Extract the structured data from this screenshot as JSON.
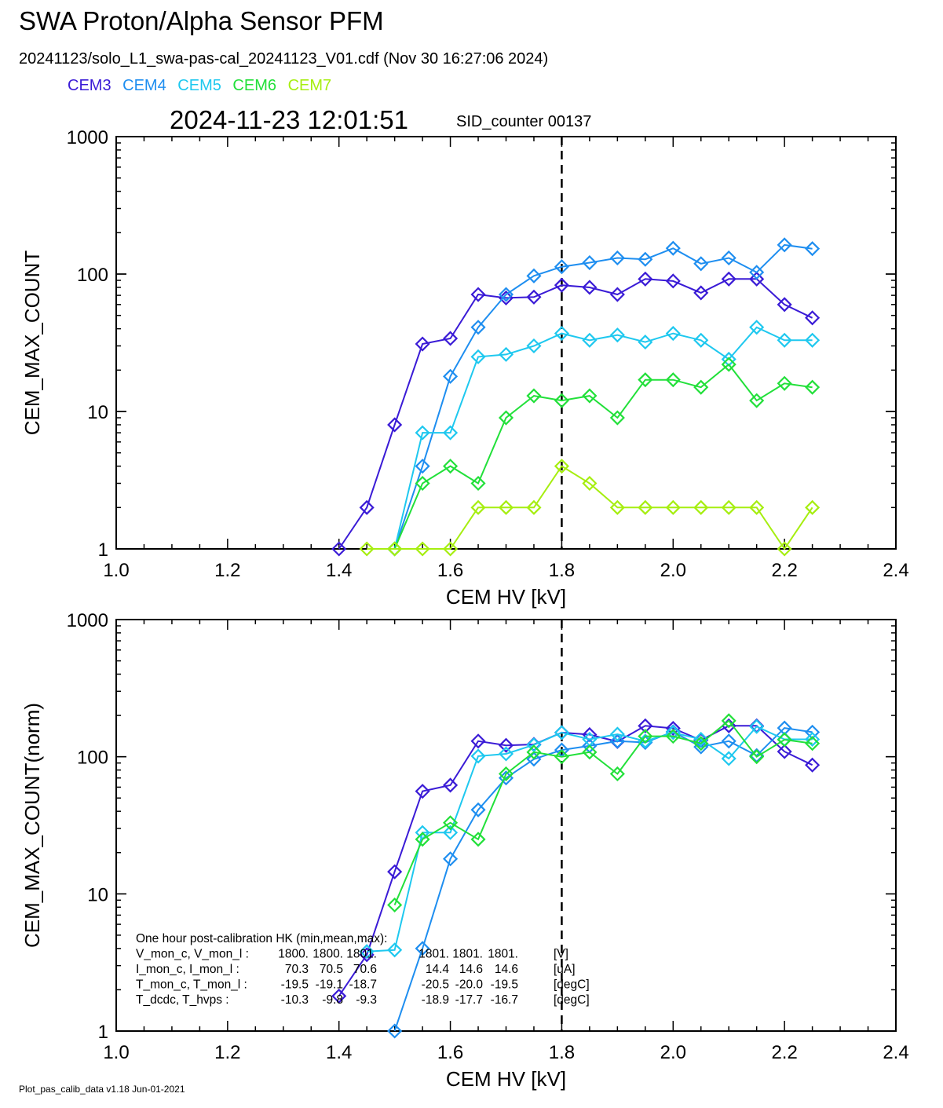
{
  "header": {
    "title": "SWA Proton/Alpha Sensor PFM",
    "subtitle": "20241123/solo_L1_swa-pas-cal_20241123_V01.cdf  (Nov 30 16:27:06 2024)",
    "timestamp": "2024-11-23 12:01:51",
    "sid_counter": "SID_counter 00137"
  },
  "legend": [
    {
      "name": "CEM3",
      "color": "#3a1bd6"
    },
    {
      "name": "CEM4",
      "color": "#1e8ef0"
    },
    {
      "name": "CEM5",
      "color": "#1ec8ef"
    },
    {
      "name": "CEM6",
      "color": "#22e03a"
    },
    {
      "name": "CEM7",
      "color": "#a6ee10"
    }
  ],
  "footer": "Plot_pas_calib_data v1.18 Jun-01-2021",
  "chart_data": [
    {
      "type": "line",
      "xlabel": "CEM HV [kV]",
      "ylabel": "CEM_MAX_COUNT",
      "xlim": [
        1.0,
        2.4
      ],
      "ylim": [
        1,
        1000
      ],
      "yscale": "log",
      "xticks": [
        "1.0",
        "1.2",
        "1.4",
        "1.6",
        "1.8",
        "2.0",
        "2.2",
        "2.4"
      ],
      "yticks": [
        "1",
        "10",
        "100",
        "1000"
      ],
      "vline_x": 1.8,
      "series": [
        {
          "name": "CEM3",
          "color": "#3a1bd6",
          "x": [
            1.4,
            1.45,
            1.5,
            1.55,
            1.6,
            1.65,
            1.7,
            1.75,
            1.8,
            1.85,
            1.9,
            1.95,
            2.0,
            2.05,
            2.1,
            2.15,
            2.2,
            2.25
          ],
          "y": [
            1,
            2,
            8,
            31,
            34,
            71,
            67,
            68,
            83,
            80,
            71,
            92,
            89,
            73,
            92,
            92,
            60,
            48
          ]
        },
        {
          "name": "CEM4",
          "color": "#1e8ef0",
          "x": [
            1.5,
            1.55,
            1.6,
            1.65,
            1.7,
            1.75,
            1.8,
            1.85,
            1.9,
            1.95,
            2.0,
            2.05,
            2.1,
            2.15,
            2.2,
            2.25
          ],
          "y": [
            1,
            4,
            18,
            41,
            71,
            97,
            113,
            121,
            131,
            128,
            154,
            119,
            131,
            103,
            163,
            153
          ]
        },
        {
          "name": "CEM5",
          "color": "#1ec8ef",
          "x": [
            1.5,
            1.55,
            1.6,
            1.65,
            1.7,
            1.75,
            1.8,
            1.85,
            1.9,
            1.95,
            2.0,
            2.05,
            2.1,
            2.15,
            2.2,
            2.25
          ],
          "y": [
            1,
            7,
            7,
            25,
            26,
            30,
            37,
            33,
            36,
            32,
            37,
            33,
            24,
            41,
            33,
            33
          ]
        },
        {
          "name": "CEM6",
          "color": "#22e03a",
          "x": [
            1.5,
            1.55,
            1.6,
            1.65,
            1.7,
            1.75,
            1.8,
            1.85,
            1.9,
            1.95,
            2.0,
            2.05,
            2.1,
            2.15,
            2.2,
            2.25
          ],
          "y": [
            1,
            3,
            4,
            3,
            9,
            13,
            12,
            13,
            9,
            17,
            17,
            15,
            22,
            12,
            16,
            15
          ]
        },
        {
          "name": "CEM7",
          "color": "#a6ee10",
          "x": [
            1.45,
            1.5,
            1.55,
            1.6,
            1.65,
            1.7,
            1.75,
            1.8,
            1.85,
            1.9,
            1.95,
            2.0,
            2.05,
            2.1,
            2.15,
            2.2,
            2.25
          ],
          "y": [
            1,
            1,
            1,
            1,
            2,
            2,
            2,
            4,
            3,
            2,
            2,
            2,
            2,
            2,
            2,
            1,
            2
          ]
        }
      ]
    },
    {
      "type": "line",
      "xlabel": "CEM HV [kV]",
      "ylabel": "CEM_MAX_COUNT(norm)",
      "xlim": [
        1.0,
        2.4
      ],
      "ylim": [
        1,
        1000
      ],
      "yscale": "log",
      "xticks": [
        "1.0",
        "1.2",
        "1.4",
        "1.6",
        "1.8",
        "2.0",
        "2.2",
        "2.4"
      ],
      "yticks": [
        "1",
        "10",
        "100",
        "1000"
      ],
      "vline_x": 1.8,
      "series": [
        {
          "name": "CEM3",
          "color": "#3a1bd6",
          "x": [
            1.4,
            1.45,
            1.5,
            1.55,
            1.6,
            1.65,
            1.7,
            1.75,
            1.8,
            1.85,
            1.9,
            1.95,
            2.0,
            2.05,
            2.1,
            2.15,
            2.2,
            2.25
          ],
          "y": [
            1.8,
            3.6,
            14.5,
            56,
            62,
            130,
            121,
            123,
            150,
            145,
            129,
            168,
            161,
            132,
            168,
            168,
            109,
            87
          ]
        },
        {
          "name": "CEM4",
          "color": "#1e8ef0",
          "x": [
            1.5,
            1.55,
            1.6,
            1.65,
            1.7,
            1.75,
            1.8,
            1.85,
            1.9,
            1.95,
            2.0,
            2.05,
            2.1,
            2.15,
            2.2,
            2.25
          ],
          "y": [
            1,
            4,
            18,
            41,
            70,
            96,
            112,
            120,
            130,
            127,
            152,
            118,
            130,
            102,
            162,
            151
          ]
        },
        {
          "name": "CEM5",
          "color": "#1ec8ef",
          "x": [
            1.45,
            1.5,
            1.55,
            1.6,
            1.65,
            1.7,
            1.75,
            1.8,
            1.85,
            1.9,
            1.95,
            2.0,
            2.05,
            2.1,
            2.15,
            2.2,
            2.25
          ],
          "y": [
            3.8,
            3.9,
            28,
            28,
            101,
            105,
            122,
            150,
            134,
            146,
            130,
            150,
            134,
            97,
            166,
            134,
            134
          ]
        },
        {
          "name": "CEM6",
          "color": "#22e03a",
          "x": [
            1.5,
            1.55,
            1.6,
            1.65,
            1.7,
            1.75,
            1.8,
            1.85,
            1.9,
            1.95,
            2.0,
            2.05,
            2.1,
            2.15,
            2.2,
            2.25
          ],
          "y": [
            8.3,
            25,
            33,
            25,
            75,
            108,
            100,
            108,
            75,
            141,
            141,
            125,
            183,
            100,
            133,
            125
          ]
        }
      ],
      "annotation": {
        "heading": "One hour post-calibration HK (min,mean,max):",
        "rows": [
          {
            "label": "V_mon_c, V_mon_l :",
            "a": [
              "1800.",
              "1800.",
              "1801."
            ],
            "b": [
              "1801.",
              "1801.",
              "1801."
            ],
            "unit": "[V]"
          },
          {
            "label": "I_mon_c,  I_mon_l :",
            "a": [
              "70.3",
              "70.5",
              "70.6"
            ],
            "b": [
              "14.4",
              "14.6",
              "14.6"
            ],
            "unit": "[uA]"
          },
          {
            "label": "T_mon_c, T_mon_l :",
            "a": [
              "-19.5",
              "-19.1",
              "-18.7"
            ],
            "b": [
              "-20.5",
              "-20.0",
              "-19.5"
            ],
            "unit": "[degC]"
          },
          {
            "label": "T_dcdc,    T_hvps :",
            "a": [
              "-10.3",
              "-9.8",
              "-9.3"
            ],
            "b": [
              "-18.9",
              "-17.7",
              "-16.7"
            ],
            "unit": "[degC]"
          }
        ]
      }
    }
  ]
}
